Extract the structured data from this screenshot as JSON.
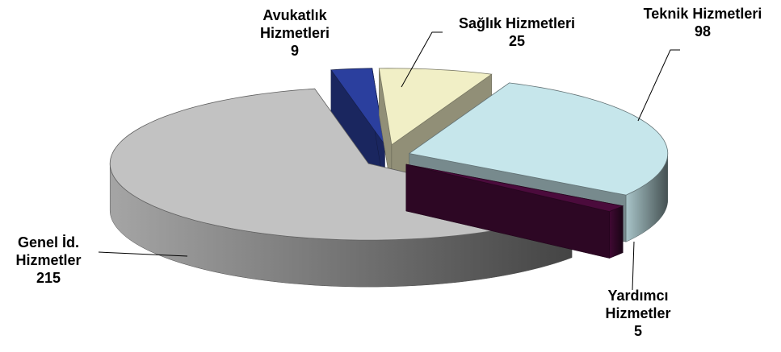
{
  "chart_data": {
    "type": "pie3d",
    "categories": [
      "Avukatlık Hizmetleri",
      "Sağlık Hizmetleri",
      "Teknik Hizmetleri",
      "Yardımcı Hizmetler",
      "Genel İd. Hizmetler"
    ],
    "values": [
      9,
      25,
      98,
      5,
      215
    ],
    "colors": [
      "#2b3f9e",
      "#f1efc6",
      "#c6e6eb",
      "#4b0b3c",
      "#c2c2c2"
    ]
  }
}
